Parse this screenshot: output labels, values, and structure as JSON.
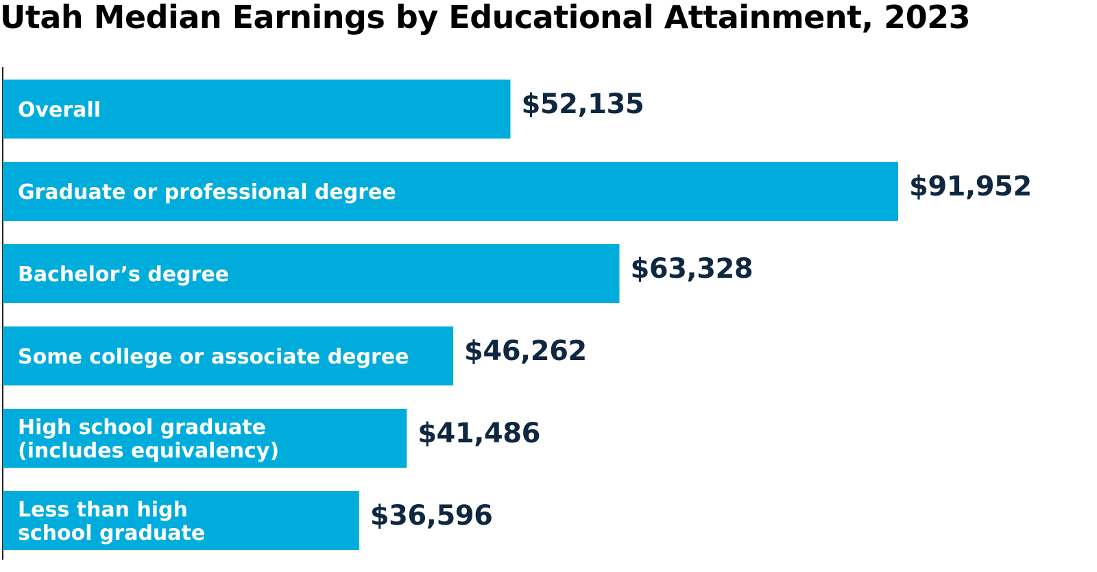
{
  "colors": {
    "bar": "#00acdb",
    "text_dark": "#0f2740",
    "label_text": "#ffffff",
    "axis": "#222222"
  },
  "chart_data": {
    "type": "bar",
    "orientation": "horizontal",
    "title": "Utah Median Earnings by Educational Attainment, 2023",
    "categories": [
      "Overall",
      "Graduate or professional degree",
      "Bachelor’s degree",
      "Some college or associate degree",
      "High school graduate (includes equivalency)",
      "Less than high school graduate"
    ],
    "category_lines": [
      [
        "Overall"
      ],
      [
        "Graduate or professional degree"
      ],
      [
        "Bachelor’s degree"
      ],
      [
        "Some college or associate degree"
      ],
      [
        "High school graduate",
        "(includes equivalency)"
      ],
      [
        "Less than high",
        "school graduate"
      ]
    ],
    "values": [
      52135,
      91952,
      63328,
      46262,
      41486,
      36596
    ],
    "value_labels": [
      "$52,135",
      "$91,952",
      "$63,328",
      "$46,262",
      "$41,486",
      "$36,596"
    ],
    "xlabel": "",
    "ylabel": "",
    "grid": false,
    "legend": "none"
  }
}
